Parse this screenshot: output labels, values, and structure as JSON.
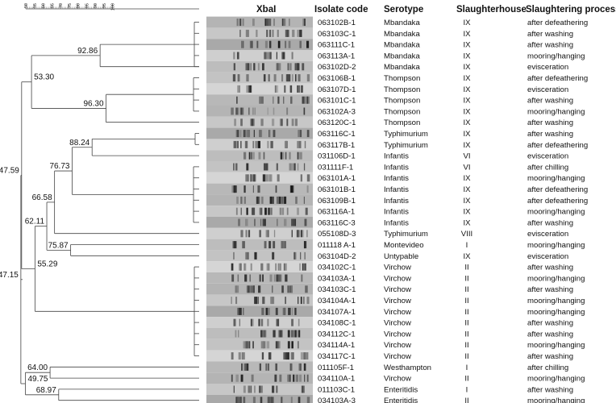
{
  "headers": {
    "gel": "XbaI",
    "isolate": "Isolate code",
    "serotype": "Serotype",
    "slaughterhouse": "Slaughterhouse",
    "process": "Slaughtering process"
  },
  "scale": {
    "ticks": [
      "50",
      "55",
      "60",
      "65",
      "70",
      "75",
      "80",
      "85",
      "90",
      "95",
      "100"
    ]
  },
  "nodes": [
    {
      "id": "n1",
      "label": "92.86",
      "similarity": 92.86
    },
    {
      "id": "n2",
      "label": "96.30",
      "similarity": 96.3
    },
    {
      "id": "n3",
      "label": "53.30",
      "similarity": 53.3
    },
    {
      "id": "n4",
      "label": "88.24",
      "similarity": 88.24
    },
    {
      "id": "n5",
      "label": "76.73",
      "similarity": 76.73
    },
    {
      "id": "n6",
      "label": "66.58",
      "similarity": 66.58
    },
    {
      "id": "n7",
      "label": "62.11",
      "similarity": 62.11
    },
    {
      "id": "n8",
      "label": "75.87",
      "similarity": 75.87
    },
    {
      "id": "n9",
      "label": "55.29",
      "similarity": 55.29
    },
    {
      "id": "n10",
      "label": "47.59",
      "similarity": 47.59
    },
    {
      "id": "n11",
      "label": "64.00",
      "similarity": 64.0
    },
    {
      "id": "n12",
      "label": "68.97",
      "similarity": 68.97
    },
    {
      "id": "n13",
      "label": "49.75",
      "similarity": 49.75
    },
    {
      "id": "n14",
      "label": "47.15",
      "similarity": 47.15
    }
  ],
  "rows": [
    {
      "code": "063102B-1",
      "serotype": "Mbandaka",
      "slaughterhouse": "IX",
      "process": "after defeathering"
    },
    {
      "code": "063103C-1",
      "serotype": "Mbandaka",
      "slaughterhouse": "IX",
      "process": "after washing"
    },
    {
      "code": "063111C-1",
      "serotype": "Mbandaka",
      "slaughterhouse": "IX",
      "process": "after washing"
    },
    {
      "code": "063113A-1",
      "serotype": "Mbandaka",
      "slaughterhouse": "IX",
      "process": "mooring/hanging"
    },
    {
      "code": "063102D-2",
      "serotype": "Mbandaka",
      "slaughterhouse": "IX",
      "process": "evisceration"
    },
    {
      "code": "063106B-1",
      "serotype": "Thompson",
      "slaughterhouse": "IX",
      "process": "after defeathering"
    },
    {
      "code": "063107D-1",
      "serotype": "Thompson",
      "slaughterhouse": "IX",
      "process": "evisceration"
    },
    {
      "code": "063101C-1",
      "serotype": "Thompson",
      "slaughterhouse": "IX",
      "process": "after washing"
    },
    {
      "code": "063102A-3",
      "serotype": "Thompson",
      "slaughterhouse": "IX",
      "process": "mooring/hanging"
    },
    {
      "code": "063120C-1",
      "serotype": "Thompson",
      "slaughterhouse": "IX",
      "process": "after washing"
    },
    {
      "code": "063116C-1",
      "serotype": "Typhimurium",
      "slaughterhouse": "IX",
      "process": "after washing"
    },
    {
      "code": "063117B-1",
      "serotype": "Typhimurium",
      "slaughterhouse": "IX",
      "process": "after defeathering"
    },
    {
      "code": "031106D-1",
      "serotype": "Infantis",
      "slaughterhouse": "VI",
      "process": "evisceration"
    },
    {
      "code": "031111F-1",
      "serotype": "Infantis",
      "slaughterhouse": "VI",
      "process": "after chilling"
    },
    {
      "code": "063101A-1",
      "serotype": "Infantis",
      "slaughterhouse": "IX",
      "process": "mooring/hanging"
    },
    {
      "code": "063101B-1",
      "serotype": "Infantis",
      "slaughterhouse": "IX",
      "process": "after defeathering"
    },
    {
      "code": "063109B-1",
      "serotype": "Infantis",
      "slaughterhouse": "IX",
      "process": "after defeathering"
    },
    {
      "code": "063116A-1",
      "serotype": "Infantis",
      "slaughterhouse": "IX",
      "process": "mooring/hanging"
    },
    {
      "code": "063116C-3",
      "serotype": "Infantis",
      "slaughterhouse": "IX",
      "process": "after washing"
    },
    {
      "code": "055108D-3",
      "serotype": "Typhimurium",
      "slaughterhouse": "VIII",
      "process": "evisceration"
    },
    {
      "code": "011118 A-1",
      "serotype": "Montevideo",
      "slaughterhouse": "I",
      "process": "mooring/hanging"
    },
    {
      "code": "063104D-2",
      "serotype": "Untypable",
      "slaughterhouse": "IX",
      "process": "evisceration"
    },
    {
      "code": "034102C-1",
      "serotype": "Virchow",
      "slaughterhouse": "II",
      "process": "after washing"
    },
    {
      "code": "034103A-1",
      "serotype": "Virchow",
      "slaughterhouse": "II",
      "process": "mooring/hanging"
    },
    {
      "code": "034103C-1",
      "serotype": "Virchow",
      "slaughterhouse": "II",
      "process": "after washing"
    },
    {
      "code": "034104A-1",
      "serotype": "Virchow",
      "slaughterhouse": "II",
      "process": "mooring/hanging"
    },
    {
      "code": "034107A-1",
      "serotype": "Virchow",
      "slaughterhouse": "II",
      "process": "mooring/hanging"
    },
    {
      "code": "034108C-1",
      "serotype": "Virchow",
      "slaughterhouse": "II",
      "process": "after washing"
    },
    {
      "code": "034112C-1",
      "serotype": "Virchow",
      "slaughterhouse": "II",
      "process": "after washing"
    },
    {
      "code": "034114A-1",
      "serotype": "Virchow",
      "slaughterhouse": "II",
      "process": "mooring/hanging"
    },
    {
      "code": "034117C-1",
      "serotype": "Virchow",
      "slaughterhouse": "II",
      "process": "after washing"
    },
    {
      "code": "011105F-1",
      "serotype": "Westhampton",
      "slaughterhouse": "I",
      "process": "after chilling"
    },
    {
      "code": "034110A-1",
      "serotype": "Virchow",
      "slaughterhouse": "II",
      "process": "mooring/hanging"
    },
    {
      "code": "011103C-1",
      "serotype": "Enteritidis",
      "slaughterhouse": "I",
      "process": "after washing"
    },
    {
      "code": "034103A-3",
      "serotype": "Enteritidis",
      "slaughterhouse": "II",
      "process": "mooring/hanging"
    }
  ]
}
